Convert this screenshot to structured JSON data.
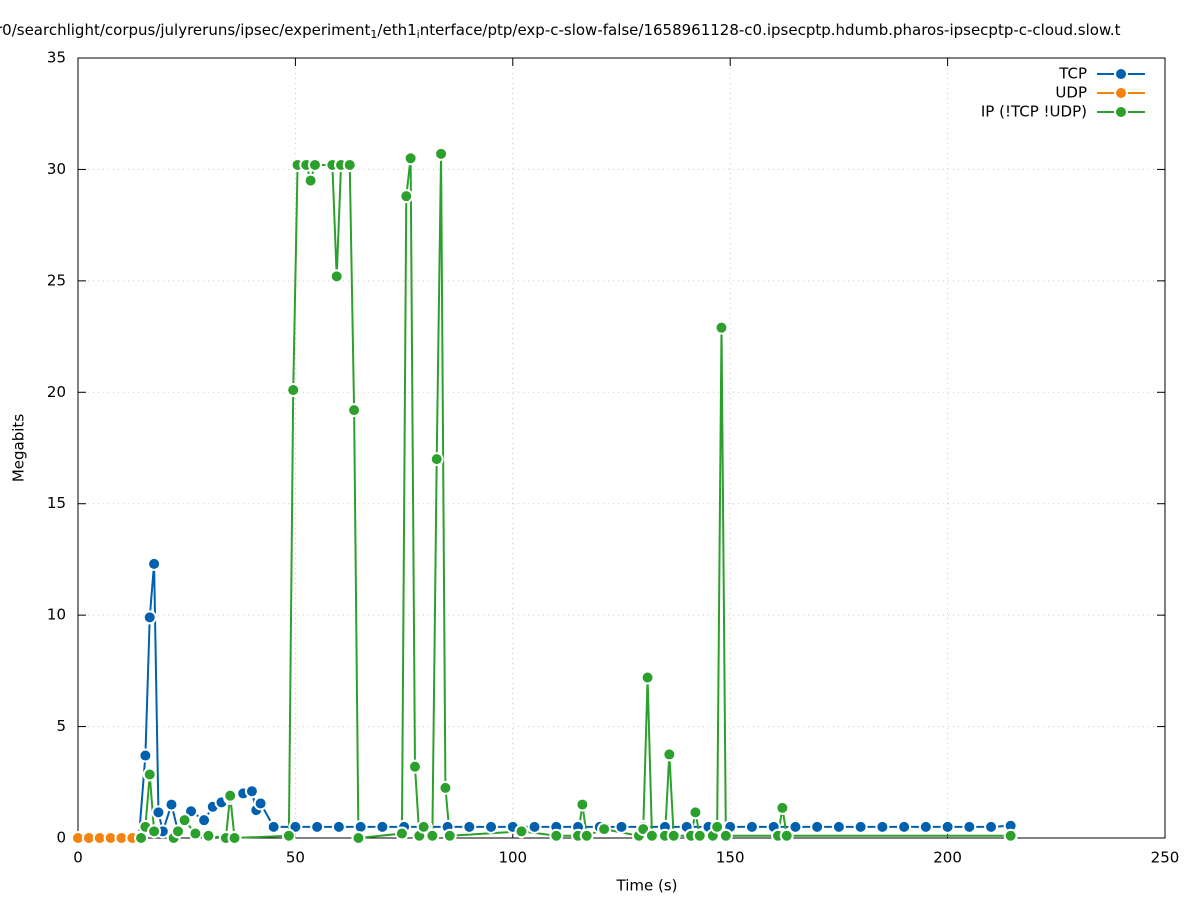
{
  "chart_data": {
    "type": "line",
    "title": [
      "r0/searchlight/corpus/julyreruns/ipsec/experiment",
      "1",
      "/eth1",
      "i",
      "nterface/ptp/exp-c-slow-false/1658961128-c0.ipsecptp.hdumb.pharos-ipsecptp-c-cloud.slow.t"
    ],
    "x_label": "Time (s)",
    "y_label": "Megabits",
    "xlim": [
      0,
      250
    ],
    "ylim": [
      0,
      35
    ],
    "xticks": [
      0,
      50,
      100,
      150,
      200,
      250
    ],
    "yticks": [
      0,
      5,
      10,
      15,
      20,
      25,
      30,
      35
    ],
    "grid": true,
    "legend": "top-right",
    "series": [
      {
        "name": "TCP",
        "color": "#0060ad",
        "x": [
          14,
          15.5,
          16.5,
          17.5,
          18.5,
          19.5,
          21.5,
          23,
          26,
          29,
          31,
          33,
          35,
          38,
          40,
          41,
          42,
          45,
          50,
          55,
          60,
          65,
          70,
          75,
          80,
          85,
          90,
          95,
          100,
          105,
          110,
          115,
          120,
          125,
          130,
          135,
          140,
          145,
          150,
          155,
          160,
          165,
          170,
          175,
          180,
          185,
          190,
          195,
          200,
          205,
          210,
          214.5
        ],
        "values": [
          0,
          3.7,
          9.9,
          12.3,
          1.15,
          0.3,
          1.5,
          0.3,
          1.2,
          0.8,
          1.4,
          1.6,
          1.8,
          2.0,
          2.1,
          1.25,
          1.55,
          0.5,
          0.5,
          0.5,
          0.5,
          0.5,
          0.5,
          0.5,
          0.5,
          0.5,
          0.5,
          0.5,
          0.5,
          0.5,
          0.5,
          0.5,
          0.5,
          0.5,
          0.5,
          0.5,
          0.5,
          0.5,
          0.5,
          0.5,
          0.5,
          0.5,
          0.5,
          0.5,
          0.5,
          0.5,
          0.5,
          0.5,
          0.5,
          0.5,
          0.5,
          0.55
        ]
      },
      {
        "name": "UDP",
        "color": "#f5820d",
        "x": [
          0,
          2.5,
          5,
          7.5,
          10,
          12.5
        ],
        "values": [
          0,
          0,
          0,
          0,
          0,
          0
        ]
      },
      {
        "name": "IP (!TCP  !UDP)",
        "color": "#2ca02c",
        "x": [
          14.5,
          15.5,
          16.5,
          17.5,
          22,
          23,
          24.5,
          27,
          30,
          34,
          35,
          36,
          48.5,
          49.5,
          50.5,
          52.5,
          53.5,
          54.5,
          58.5,
          59.5,
          60.5,
          62.5,
          63.5,
          64.5,
          74.5,
          75.5,
          76.5,
          77.5,
          78.5,
          79.5,
          81.5,
          82.5,
          83.5,
          84.5,
          85.5,
          102,
          110,
          115,
          116,
          117,
          121,
          129,
          130,
          131,
          132,
          135,
          136,
          137,
          141,
          142,
          143,
          146,
          147,
          148,
          149,
          161,
          162,
          163,
          214.5
        ],
        "values": [
          0,
          0.5,
          2.85,
          0.3,
          0,
          0.3,
          0.8,
          0.2,
          0.1,
          0,
          1.9,
          0,
          0.1,
          20.1,
          30.2,
          30.2,
          29.5,
          30.2,
          30.2,
          25.2,
          30.2,
          30.2,
          19.2,
          0,
          0.2,
          28.8,
          30.5,
          3.2,
          0.1,
          0.5,
          0.1,
          17,
          30.7,
          2.25,
          0.1,
          0.3,
          0.1,
          0.1,
          1.5,
          0.1,
          0.4,
          0.1,
          0.4,
          7.2,
          0.1,
          0.1,
          3.75,
          0.1,
          0.1,
          1.15,
          0.1,
          0.1,
          0.5,
          22.9,
          0.1,
          0.1,
          1.35,
          0.1,
          0.1
        ]
      }
    ]
  }
}
